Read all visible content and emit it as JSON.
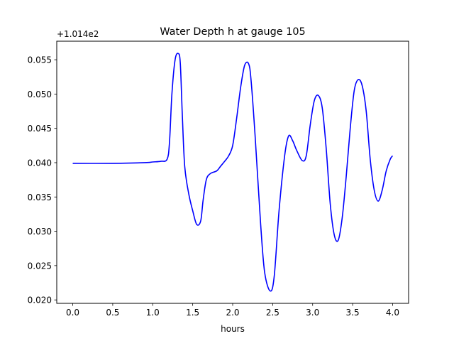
{
  "chart_data": {
    "type": "line",
    "title": "Water Depth h at gauge 105",
    "xlabel": "hours",
    "ylabel": "",
    "offset_text": "+1.014e2",
    "y_offset": 101.4,
    "xlim": [
      -0.2,
      4.2
    ],
    "ylim": [
      0.0195,
      0.0577
    ],
    "x_ticks": [
      0.0,
      0.5,
      1.0,
      1.5,
      2.0,
      2.5,
      3.0,
      3.5,
      4.0
    ],
    "x_tick_labels": [
      "0.0",
      "0.5",
      "1.0",
      "1.5",
      "2.0",
      "2.5",
      "3.0",
      "3.5",
      "4.0"
    ],
    "y_ticks": [
      0.02,
      0.025,
      0.03,
      0.035,
      0.04,
      0.045,
      0.05,
      0.055
    ],
    "y_tick_labels": [
      "0.020",
      "0.025",
      "0.030",
      "0.035",
      "0.040",
      "0.045",
      "0.050",
      "0.055"
    ],
    "grid": false,
    "line_color": "#0000ff",
    "series": [
      {
        "x": [
          0.0,
          0.5,
          0.9,
          1.0,
          1.1,
          1.18,
          1.21,
          1.24,
          1.28,
          1.32,
          1.345,
          1.37,
          1.4,
          1.45,
          1.5,
          1.55,
          1.6,
          1.63,
          1.67,
          1.72,
          1.8,
          1.85,
          1.9,
          1.95,
          2.0,
          2.05,
          2.1,
          2.15,
          2.2,
          2.23,
          2.28,
          2.35,
          2.4,
          2.47,
          2.52,
          2.58,
          2.65,
          2.7,
          2.75,
          2.8,
          2.87,
          2.92,
          2.97,
          3.02,
          3.07,
          3.12,
          3.17,
          3.22,
          3.27,
          3.32,
          3.37,
          3.42,
          3.47,
          3.52,
          3.57,
          3.62,
          3.67,
          3.72,
          3.77,
          3.82,
          3.87,
          3.92,
          3.97,
          4.0
        ],
        "y": [
          0.0399,
          0.0399,
          0.04,
          0.0401,
          0.0402,
          0.0405,
          0.043,
          0.05,
          0.055,
          0.0559,
          0.0545,
          0.047,
          0.0395,
          0.0355,
          0.033,
          0.031,
          0.0315,
          0.0345,
          0.0375,
          0.0384,
          0.0388,
          0.0395,
          0.0402,
          0.041,
          0.0425,
          0.0465,
          0.051,
          0.0542,
          0.0544,
          0.052,
          0.044,
          0.031,
          0.024,
          0.0213,
          0.0235,
          0.033,
          0.041,
          0.0439,
          0.0432,
          0.0418,
          0.0403,
          0.041,
          0.0455,
          0.049,
          0.0498,
          0.048,
          0.042,
          0.034,
          0.0295,
          0.0287,
          0.032,
          0.038,
          0.045,
          0.0505,
          0.0521,
          0.0512,
          0.0475,
          0.0405,
          0.036,
          0.0344,
          0.036,
          0.0388,
          0.0405,
          0.041
        ]
      }
    ]
  }
}
